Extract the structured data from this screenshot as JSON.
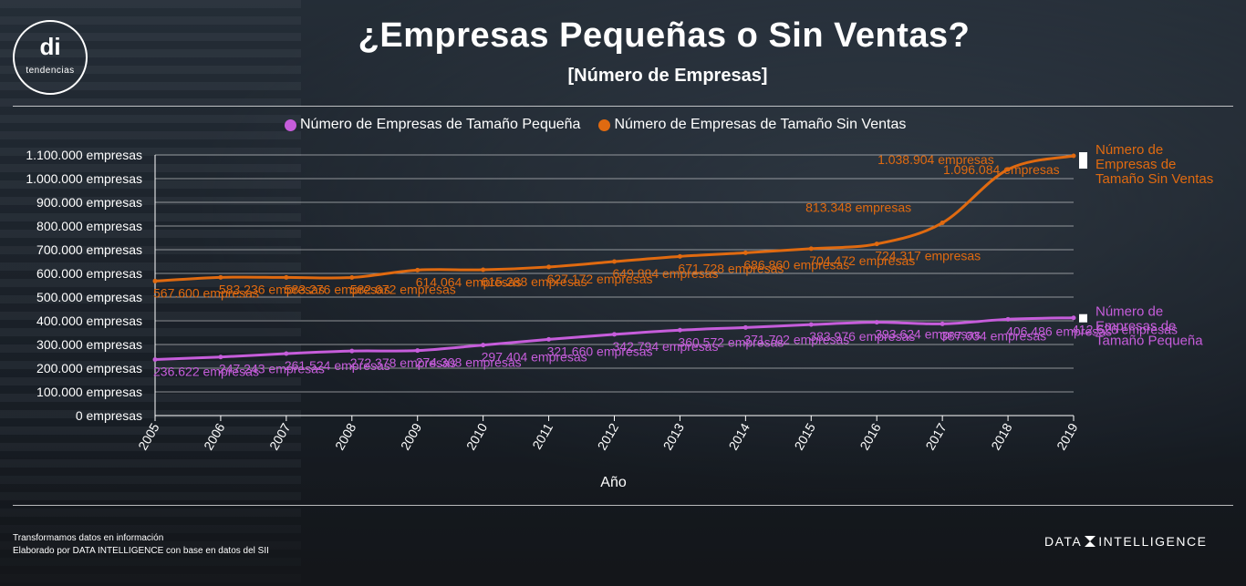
{
  "brand_logo": {
    "mark": "di",
    "text": "tendencias"
  },
  "title": "¿Empresas Pequeñas o Sin Ventas?",
  "subtitle": "[Número de Empresas]",
  "colors": {
    "small": "#c65ddb",
    "no_sales": "#e06a10",
    "grid": "rgba(255,255,255,0.5)"
  },
  "chart_data": {
    "type": "line",
    "xlabel": "Año",
    "ylabel": "",
    "ylim": [
      0,
      1100000
    ],
    "y_ticks": [
      "0 empresas",
      "100.000 empresas",
      "200.000 empresas",
      "300.000 empresas",
      "400.000 empresas",
      "500.000 empresas",
      "600.000 empresas",
      "700.000 empresas",
      "800.000 empresas",
      "900.000 empresas",
      "1.000.000 empresas",
      "1.100.000 empresas"
    ],
    "x": [
      "2005",
      "2006",
      "2007",
      "2008",
      "2009",
      "2010",
      "2011",
      "2012",
      "2013",
      "2014",
      "2015",
      "2016",
      "2017",
      "2018",
      "2019"
    ],
    "grid": true,
    "legend_position": "top",
    "series": [
      {
        "name": "Número de Empresas de Tamaño Pequeña",
        "end_label": [
          "Número de",
          "Empresas de",
          "Tamaño Pequeña"
        ],
        "values": [
          236622,
          247243,
          261524,
          272378,
          274308,
          297404,
          321660,
          342794,
          360572,
          371702,
          383976,
          393624,
          387034,
          406486,
          412626
        ],
        "labels": [
          "236.622 empresas",
          "247.243 empresas",
          "261.524 empresas",
          "272.378 empresas",
          "274.308 empresas",
          "297.404 empresas",
          "321.660 empresas",
          "342.794 empresas",
          "360.572 empresas",
          "371.702 empresas",
          "383.976 empresas",
          "393.624 empresas",
          "387.034 empresas",
          "406.486 empresas",
          "412.626 empresas"
        ]
      },
      {
        "name": "Número de Empresas de Tamaño Sin Ventas",
        "end_label": [
          "Número de",
          "Empresas de",
          "Tamaño Sin Ventas"
        ],
        "values": [
          567600,
          583236,
          583276,
          582672,
          614064,
          615288,
          627172,
          649884,
          671728,
          686860,
          704472,
          724317,
          813348,
          1038904,
          1096084
        ],
        "labels": [
          "567.600 empresas",
          "583.236 empresas",
          "583.276 empresas",
          "582.672 empresas",
          "614.064 empresas",
          "615.288 empresas",
          "627.172 empresas",
          "649.884 empresas",
          "671.728 empresas",
          "686.860 empresas",
          "704.472 empresas",
          "724.317 empresas",
          "813.348 empresas",
          "1.038.904 empresas",
          "1.096.084 empresas"
        ]
      }
    ]
  },
  "footer": {
    "line1": "Transformamos datos en información",
    "line2": "Elaborado por DATA INTELLIGENCE con base en datos del SII"
  },
  "brand": {
    "left": "DATA",
    "right": "INTELLIGENCE"
  }
}
